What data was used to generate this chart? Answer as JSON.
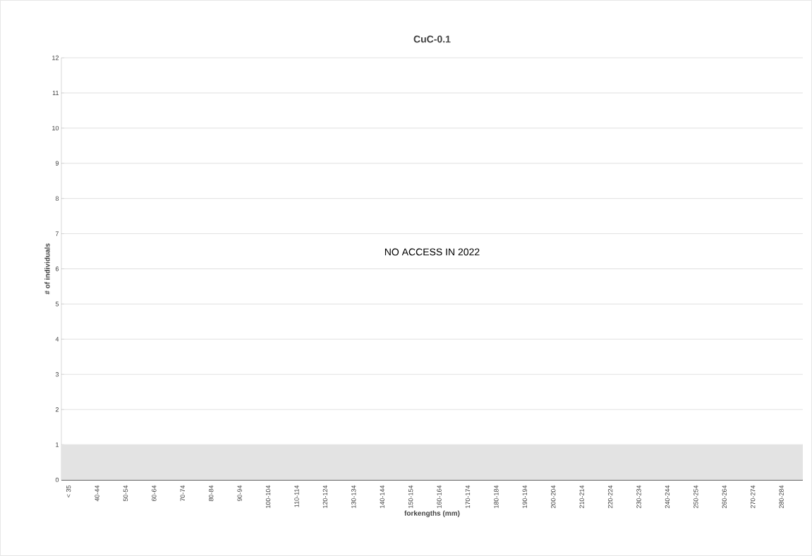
{
  "chart_data": {
    "type": "bar",
    "title": "CuC-0.1",
    "xlabel": "forkengths (mm)",
    "ylabel": "# of individuals",
    "categories": [
      "< 35",
      null,
      "40-44",
      null,
      "50-54",
      null,
      "60-64",
      null,
      "70-74",
      null,
      "80-84",
      null,
      "90-94",
      null,
      "100-104",
      null,
      "110-114",
      null,
      "120-124",
      null,
      "130-134",
      null,
      "140-144",
      null,
      "150-154",
      null,
      "160-164",
      null,
      "170-174",
      null,
      "180-184",
      null,
      "190-194",
      null,
      "200-204",
      null,
      "210-214",
      null,
      "220-224",
      null,
      "230-234",
      null,
      "240-244",
      null,
      "250-254",
      null,
      "260-264",
      null,
      "270-274",
      null,
      "280-284",
      null
    ],
    "values": [
      0,
      0,
      0,
      0,
      0,
      0,
      0,
      0,
      0,
      0,
      0,
      0,
      0,
      0,
      0,
      0,
      0,
      0,
      0,
      0,
      0,
      0,
      0,
      0,
      0,
      0,
      0,
      0,
      0,
      0,
      0,
      0,
      0,
      0,
      0,
      0,
      0,
      0,
      0,
      0,
      0,
      0,
      0,
      0,
      0,
      0,
      0,
      0,
      0,
      0,
      0,
      0
    ],
    "ylim": [
      0,
      12
    ],
    "yticks": [
      0,
      1,
      2,
      3,
      4,
      5,
      6,
      7,
      8,
      9,
      10,
      11,
      12
    ],
    "grid": "y",
    "bands": [
      {
        "axis": "y",
        "from": 0,
        "to": 1,
        "color": "#e3e3e3"
      }
    ],
    "annotations": [
      "NO ACCESS IN 2022"
    ]
  }
}
